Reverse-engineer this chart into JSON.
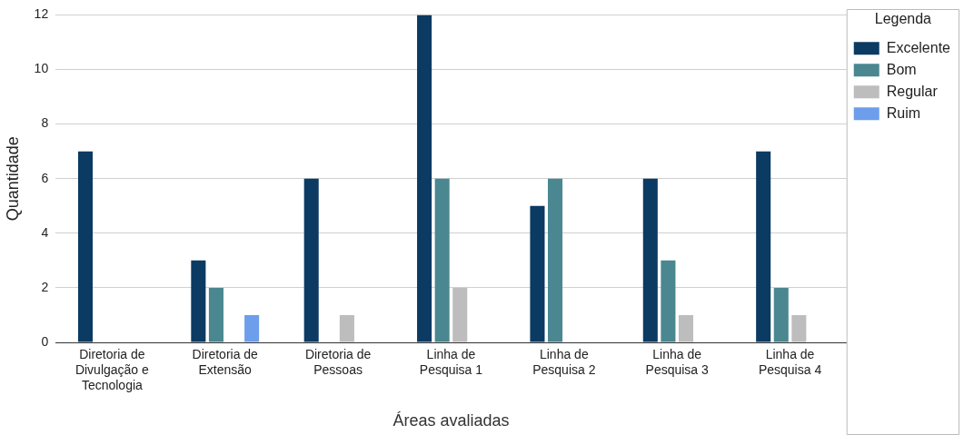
{
  "chart_data": {
    "type": "bar",
    "xlabel": "Áreas avaliadas",
    "ylabel": "Quantidade",
    "legend_title": "Legenda",
    "legend": "right",
    "categories": [
      "Diretoria de Divulgação e Tecnologia",
      "Diretoria de Extensão",
      "Diretoria de Pessoas",
      "Linha de Pesquisa 1",
      "Linha de Pesquisa 2",
      "Linha de Pesquisa 3",
      "Linha de Pesquisa 4"
    ],
    "series": [
      {
        "name": "Excelente",
        "color": "#0b3a63",
        "values": [
          7,
          3,
          6,
          12,
          5,
          6,
          7
        ]
      },
      {
        "name": "Bom",
        "color": "#4a8790",
        "values": [
          0,
          2,
          0,
          6,
          6,
          3,
          2
        ]
      },
      {
        "name": "Regular",
        "color": "#bdbdbd",
        "values": [
          0,
          0,
          1,
          2,
          0,
          1,
          1
        ]
      },
      {
        "name": "Ruim",
        "color": "#6d9eeb",
        "values": [
          0,
          1,
          0,
          0,
          0,
          0,
          0
        ]
      }
    ],
    "ylim": [
      0,
      12
    ],
    "yticks": [
      0,
      2,
      4,
      6,
      8,
      10,
      12
    ],
    "grid": "y"
  }
}
